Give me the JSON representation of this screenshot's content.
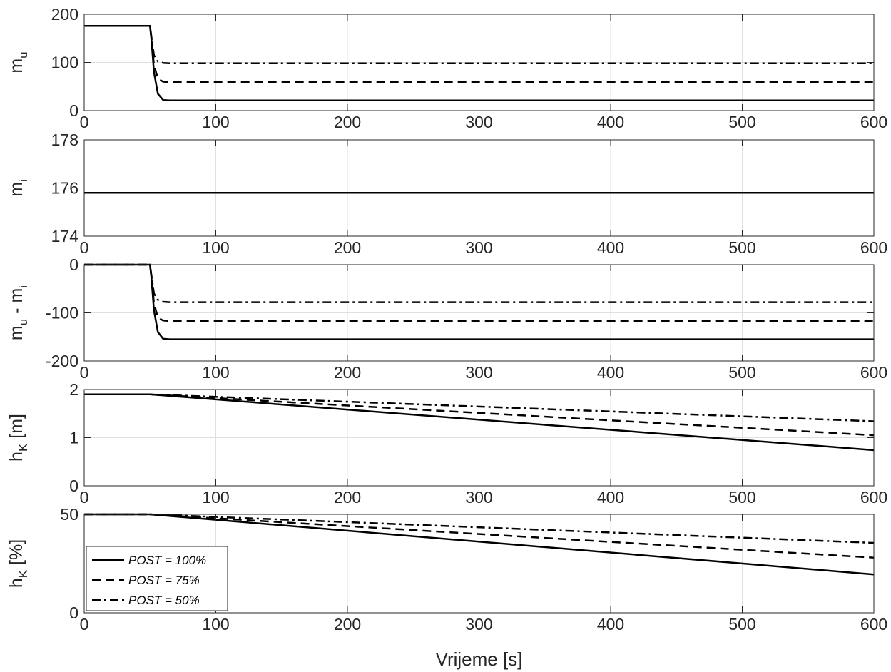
{
  "chart_data": [
    {
      "type": "line",
      "ylabel_main": "m",
      "ylabel_sub": "u",
      "xlim": [
        0,
        600
      ],
      "ylim": [
        0,
        200
      ],
      "xticks": [
        "0",
        "100",
        "200",
        "300",
        "400",
        "500",
        "600"
      ],
      "yticks": [
        "0",
        "100",
        "200"
      ],
      "grid": true,
      "series": [
        {
          "name": "POST = 100%",
          "style": "solid",
          "points": [
            [
              0,
              176
            ],
            [
              50,
              176
            ],
            [
              51,
              150
            ],
            [
              53,
              80
            ],
            [
              56,
              35
            ],
            [
              60,
              22
            ],
            [
              65,
              21
            ],
            [
              600,
              21
            ]
          ]
        },
        {
          "name": "POST = 75%",
          "style": "dashed",
          "points": [
            [
              0,
              176
            ],
            [
              50,
              176
            ],
            [
              51,
              150
            ],
            [
              53,
              95
            ],
            [
              56,
              66
            ],
            [
              60,
              60
            ],
            [
              65,
              59
            ],
            [
              600,
              59
            ]
          ]
        },
        {
          "name": "POST = 50%",
          "style": "dashdot",
          "points": [
            [
              0,
              176
            ],
            [
              50,
              176
            ],
            [
              51,
              155
            ],
            [
              53,
              115
            ],
            [
              56,
              102
            ],
            [
              60,
              99
            ],
            [
              65,
              98
            ],
            [
              600,
              98
            ]
          ]
        }
      ]
    },
    {
      "type": "line",
      "ylabel_main": "m",
      "ylabel_sub": "i",
      "xlim": [
        0,
        600
      ],
      "ylim": [
        174,
        178
      ],
      "xticks": [
        "0",
        "100",
        "200",
        "300",
        "400",
        "500",
        "600"
      ],
      "yticks": [
        "174",
        "176",
        "178"
      ],
      "grid": true,
      "series": [
        {
          "name": "POST = 100%",
          "style": "solid",
          "points": [
            [
              0,
              175.8
            ],
            [
              600,
              175.8
            ]
          ]
        }
      ]
    },
    {
      "type": "line",
      "ylabel_parts": [
        "m",
        "u",
        " - m",
        "i"
      ],
      "xlim": [
        0,
        600
      ],
      "ylim": [
        -200,
        0
      ],
      "xticks": [
        "0",
        "100",
        "200",
        "300",
        "400",
        "500",
        "600"
      ],
      "yticks": [
        "-200",
        "-100",
        "0"
      ],
      "grid": true,
      "series": [
        {
          "name": "POST = 100%",
          "style": "solid",
          "points": [
            [
              0,
              0
            ],
            [
              50,
              0
            ],
            [
              51,
              -25
            ],
            [
              53,
              -95
            ],
            [
              56,
              -140
            ],
            [
              60,
              -154
            ],
            [
              65,
              -155
            ],
            [
              600,
              -155
            ]
          ]
        },
        {
          "name": "POST = 75%",
          "style": "dashed",
          "points": [
            [
              0,
              0
            ],
            [
              50,
              0
            ],
            [
              51,
              -25
            ],
            [
              53,
              -80
            ],
            [
              56,
              -110
            ],
            [
              60,
              -116
            ],
            [
              65,
              -117
            ],
            [
              600,
              -117
            ]
          ]
        },
        {
          "name": "POST = 50%",
          "style": "dashdot",
          "points": [
            [
              0,
              0
            ],
            [
              50,
              0
            ],
            [
              51,
              -20
            ],
            [
              53,
              -60
            ],
            [
              56,
              -73
            ],
            [
              60,
              -77
            ],
            [
              65,
              -78
            ],
            [
              600,
              -78
            ]
          ]
        }
      ]
    },
    {
      "type": "line",
      "ylabel_main": "h",
      "ylabel_sub": "K",
      "ylabel_suffix": " [m]",
      "xlim": [
        0,
        600
      ],
      "ylim": [
        0,
        2
      ],
      "xticks": [
        "0",
        "100",
        "200",
        "300",
        "400",
        "500",
        "600"
      ],
      "yticks": [
        "0",
        "1",
        "2"
      ],
      "grid": true,
      "series": [
        {
          "name": "POST = 100%",
          "style": "solid",
          "points": [
            [
              0,
              1.9
            ],
            [
              50,
              1.9
            ],
            [
              600,
              0.74
            ]
          ]
        },
        {
          "name": "POST = 75%",
          "style": "dashed",
          "points": [
            [
              0,
              1.9
            ],
            [
              50,
              1.9
            ],
            [
              600,
              1.05
            ]
          ]
        },
        {
          "name": "POST = 50%",
          "style": "dashdot",
          "points": [
            [
              0,
              1.9
            ],
            [
              50,
              1.9
            ],
            [
              600,
              1.34
            ]
          ]
        }
      ]
    },
    {
      "type": "line",
      "ylabel_main": "h",
      "ylabel_sub": "K",
      "ylabel_suffix": " [%]",
      "xlabel": "Vrijeme [s]",
      "xlim": [
        0,
        600
      ],
      "ylim": [
        0,
        50
      ],
      "xticks": [
        "0",
        "100",
        "200",
        "300",
        "400",
        "500",
        "600"
      ],
      "yticks": [
        "0",
        "50"
      ],
      "grid": true,
      "legend": "bottom-left",
      "series": [
        {
          "name": "POST = 100%",
          "style": "solid",
          "points": [
            [
              0,
              50
            ],
            [
              50,
              50
            ],
            [
              600,
              19.5
            ]
          ]
        },
        {
          "name": "POST = 75%",
          "style": "dashed",
          "points": [
            [
              0,
              50
            ],
            [
              50,
              50
            ],
            [
              600,
              28
            ]
          ]
        },
        {
          "name": "POST = 50%",
          "style": "dashdot",
          "points": [
            [
              0,
              50
            ],
            [
              50,
              50
            ],
            [
              600,
              35.5
            ]
          ]
        }
      ]
    }
  ],
  "legend": {
    "entries": [
      {
        "label": "POST = 100%",
        "style": "solid"
      },
      {
        "label": "POST = 75%",
        "style": "dashed"
      },
      {
        "label": "POST = 50%",
        "style": "dashdot"
      }
    ]
  },
  "colors": {
    "line": "#000000",
    "grid": "#e0e0e0",
    "axis": "#262626"
  }
}
